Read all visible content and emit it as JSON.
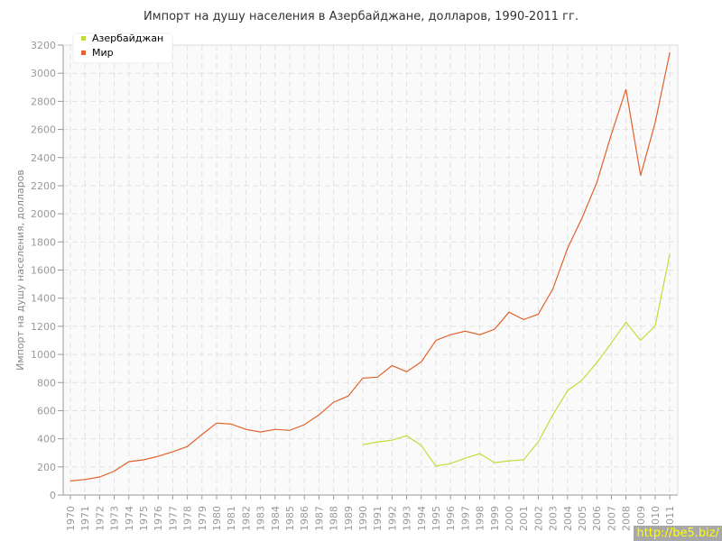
{
  "chart_data": {
    "type": "line",
    "title": "Импорт на душу населения в Азербайджане, долларов, 1990-2011 гг.",
    "xlabel": "",
    "ylabel": "Импорт на душу населения, долларов",
    "ylim": [
      0,
      3200
    ],
    "yticks": [
      0,
      200,
      400,
      600,
      800,
      1000,
      1200,
      1400,
      1600,
      1800,
      2000,
      2200,
      2400,
      2600,
      2800,
      3000,
      3200
    ],
    "x": [
      1970,
      1971,
      1972,
      1973,
      1974,
      1975,
      1976,
      1977,
      1978,
      1979,
      1980,
      1981,
      1982,
      1983,
      1984,
      1985,
      1986,
      1987,
      1988,
      1989,
      1990,
      1991,
      1992,
      1993,
      1994,
      1995,
      1996,
      1997,
      1998,
      1999,
      2000,
      2001,
      2002,
      2003,
      2004,
      2005,
      2006,
      2007,
      2008,
      2009,
      2010,
      2011
    ],
    "grid": true,
    "legend_placement": "top-left",
    "series": [
      {
        "name": "Азербайджан",
        "color": "#c3dc3c",
        "values": [
          null,
          null,
          null,
          null,
          null,
          null,
          null,
          null,
          null,
          null,
          null,
          null,
          null,
          null,
          null,
          null,
          null,
          null,
          null,
          null,
          358,
          378,
          390,
          422,
          352,
          205,
          224,
          262,
          294,
          230,
          243,
          250,
          378,
          570,
          742,
          819,
          940,
          1082,
          1229,
          1100,
          1203,
          1715
        ]
      },
      {
        "name": "Мир",
        "color": "#e0622c",
        "values": [
          100,
          110,
          128,
          170,
          237,
          250,
          275,
          307,
          345,
          430,
          512,
          505,
          467,
          448,
          467,
          460,
          500,
          570,
          660,
          704,
          832,
          838,
          920,
          877,
          947,
          1100,
          1140,
          1165,
          1140,
          1178,
          1300,
          1248,
          1286,
          1466,
          1754,
          1971,
          2221,
          2566,
          2886,
          2272,
          2650,
          3149
        ]
      }
    ]
  },
  "watermark": "http://be5.biz/"
}
